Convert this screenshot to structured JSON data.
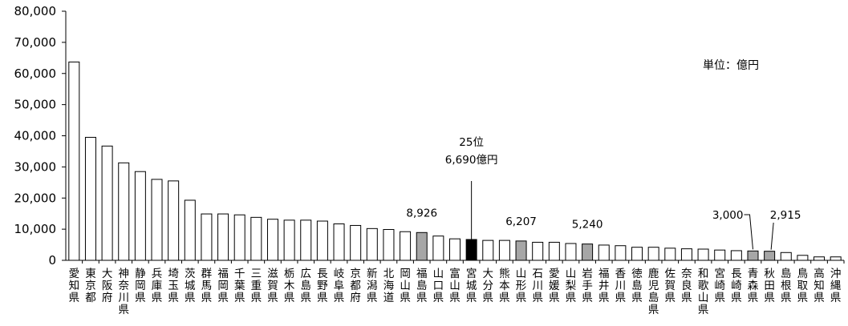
{
  "chart_data": {
    "type": "bar",
    "unit_note": "単位：億円",
    "ylim": [
      0,
      80000
    ],
    "y_ticks": [
      "0",
      "10,000",
      "20,000",
      "30,000",
      "40,000",
      "50,000",
      "60,000",
      "70,000",
      "80,000"
    ],
    "categories": [
      "愛知県",
      "東京都",
      "大阪府",
      "神奈川県",
      "静岡県",
      "兵庫県",
      "埼玉県",
      "茨城県",
      "群馬県",
      "福岡県",
      "千葉県",
      "三重県",
      "滋賀県",
      "栃木県",
      "広島県",
      "長野県",
      "岐阜県",
      "京都府",
      "新潟県",
      "北海道",
      "岡山県",
      "福島県",
      "山口県",
      "富山県",
      "宮城県",
      "大分県",
      "熊本県",
      "山形県",
      "石川県",
      "愛媛県",
      "山梨県",
      "岩手県",
      "福井県",
      "香川県",
      "徳島県",
      "鹿児島県",
      "佐賀県",
      "奈良県",
      "和歌山県",
      "宮崎県",
      "長崎県",
      "青森県",
      "秋田県",
      "島根県",
      "鳥取県",
      "高知県",
      "沖縄県"
    ],
    "values": [
      63700,
      39500,
      36700,
      31300,
      28500,
      26000,
      25500,
      19300,
      14900,
      14900,
      14600,
      13800,
      13200,
      12900,
      12900,
      12600,
      11700,
      11200,
      10200,
      9900,
      9200,
      8926,
      7800,
      6900,
      6690,
      6400,
      6400,
      6207,
      5800,
      5800,
      5400,
      5240,
      4900,
      4700,
      4200,
      4200,
      3900,
      3700,
      3600,
      3300,
      3100,
      3000,
      2915,
      2500,
      1600,
      1100,
      1100
    ],
    "highlight_gray": [
      "福島県",
      "山形県",
      "岩手県",
      "青森県",
      "秋田県"
    ],
    "highlight_black": [
      "宮城県"
    ],
    "annotations": [
      {
        "category": "福島県",
        "text": "8,926"
      },
      {
        "category": "宮城県",
        "text": "25位",
        "text2": "6,690億円"
      },
      {
        "category": "山形県",
        "text": "6,207"
      },
      {
        "category": "岩手県",
        "text": "5,240"
      },
      {
        "category": "青森県",
        "text": "3,000"
      },
      {
        "category": "秋田県",
        "text": "2,915"
      }
    ],
    "colors": {
      "default": "#ffffff",
      "gray": "#a6a6a6",
      "black": "#000000",
      "border": "#000000"
    }
  }
}
